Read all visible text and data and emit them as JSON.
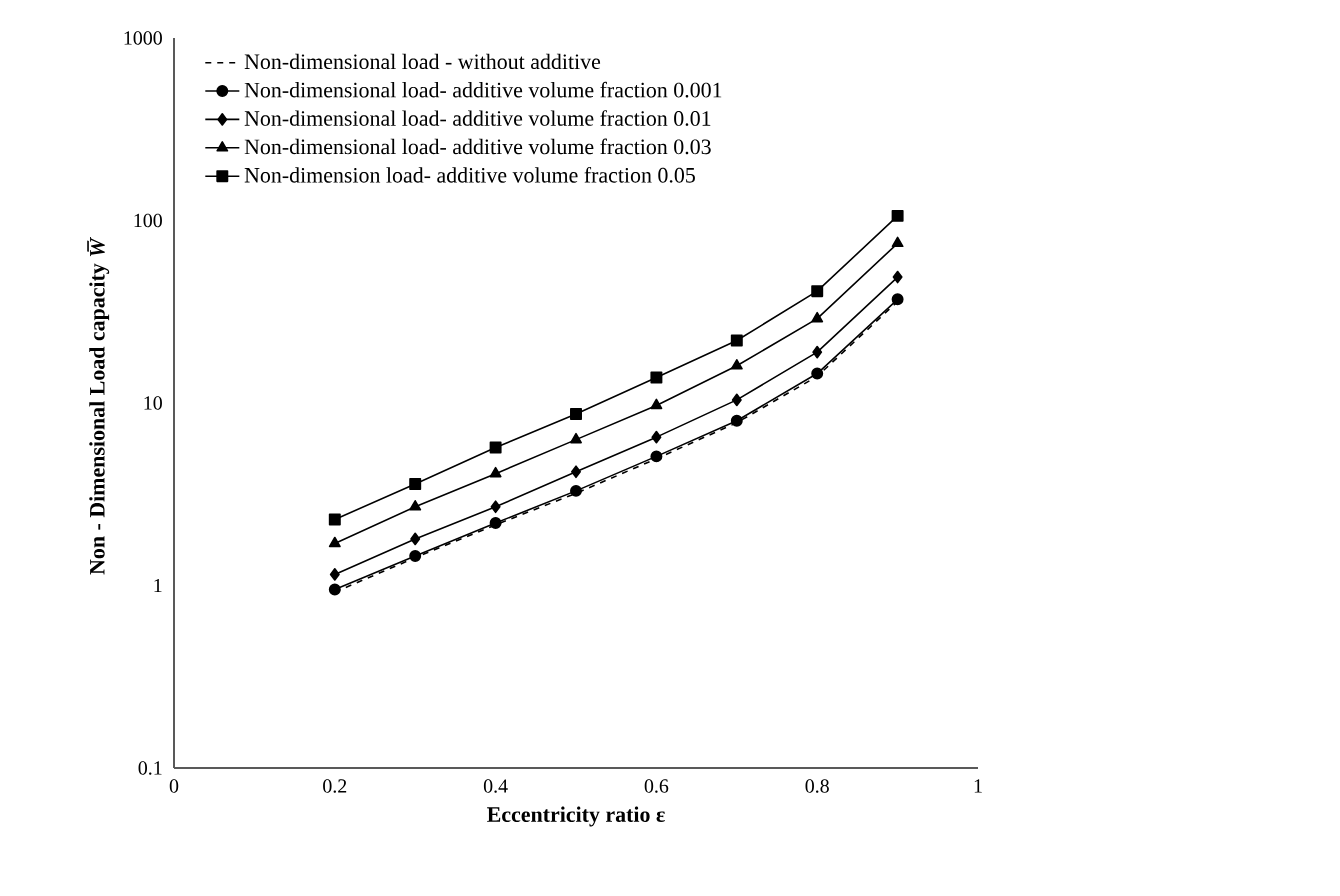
{
  "chart_data": {
    "type": "line",
    "xlabel": "Eccentricity ratio  ε",
    "ylabel": "Non - Dimensional Load capacity  *W̅*",
    "log": "y",
    "grid": false,
    "legend": "top left",
    "xlim": [
      0,
      1
    ],
    "xticks": [
      0,
      0.2,
      0.4,
      0.6,
      0.8,
      1
    ],
    "ylim": [
      0.1,
      1000
    ],
    "yticks": [
      0.1,
      1,
      10,
      100,
      1000
    ],
    "x": [
      0.2,
      0.3,
      0.4,
      0.5,
      0.6,
      0.7,
      0.8,
      0.9
    ],
    "series": [
      {
        "name": "Non-dimensional load - without additive",
        "color": "#000000",
        "marker": "none",
        "line_style": "dashed",
        "values": [
          0.92,
          1.42,
          2.15,
          3.2,
          4.95,
          7.8,
          14,
          36
        ]
      },
      {
        "name": "Non-dimensional load- additive volume fraction 0.001",
        "color": "#000000",
        "marker": "circle",
        "line_style": "solid",
        "values": [
          0.95,
          1.45,
          2.2,
          3.3,
          5.1,
          8,
          14.5,
          37
        ]
      },
      {
        "name": "Non-dimensional load- additive volume fraction 0.01",
        "color": "#000000",
        "marker": "diamond",
        "line_style": "solid",
        "values": [
          1.15,
          1.8,
          2.7,
          4.2,
          6.5,
          10.4,
          19,
          49
        ]
      },
      {
        "name": "Non-dimensional load- additive volume fraction 0.03",
        "color": "#000000",
        "marker": "triangle",
        "line_style": "solid",
        "values": [
          1.7,
          2.7,
          4.1,
          6.3,
          9.7,
          16,
          29,
          75
        ]
      },
      {
        "name": "Non-dimension load- additive volume fraction 0.05",
        "color": "#000000",
        "marker": "square",
        "line_style": "solid",
        "values": [
          2.3,
          3.6,
          5.7,
          8.7,
          13.8,
          22,
          41,
          106
        ]
      }
    ]
  }
}
